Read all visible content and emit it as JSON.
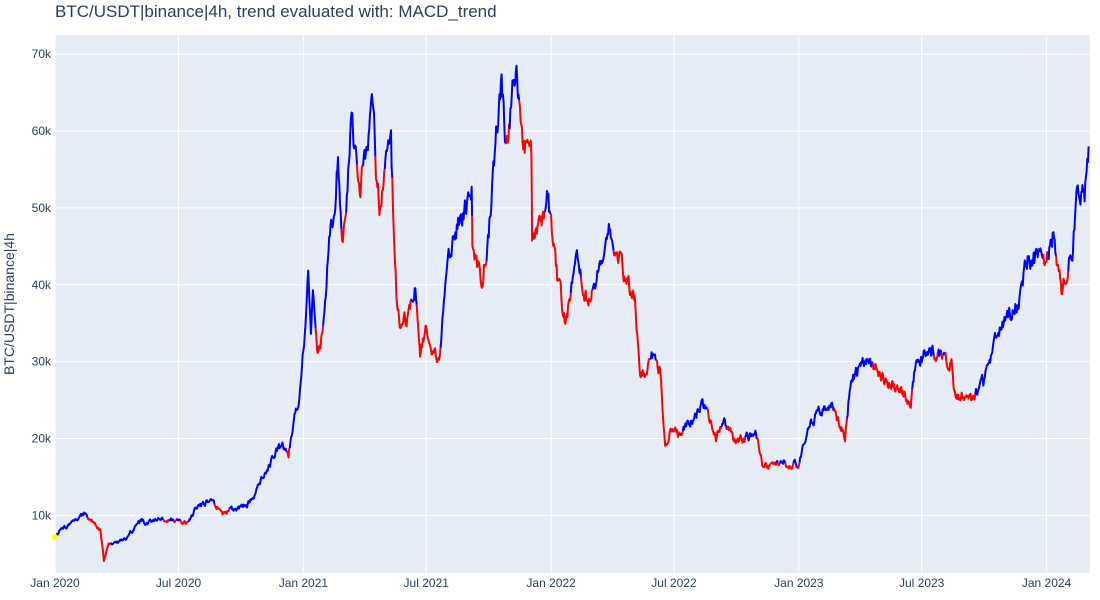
{
  "chart_data": {
    "type": "line",
    "title": "BTC/USDT|binance|4h, trend evaluated with: MACD_trend",
    "xlabel": "",
    "ylabel": "BTC/USDT|binance|4h",
    "xlim": [
      "2020-01-01",
      "2024-03-05"
    ],
    "ylim": [
      2500,
      72500
    ],
    "grid": true,
    "y_ticks": [
      10000,
      20000,
      30000,
      40000,
      50000,
      60000,
      70000
    ],
    "y_tick_labels": [
      "10k",
      "20k",
      "30k",
      "40k",
      "50k",
      "60k",
      "70k"
    ],
    "x_ticks": [
      "2020-01-01",
      "2020-07-01",
      "2021-01-01",
      "2021-07-01",
      "2022-01-01",
      "2022-07-01",
      "2023-01-01",
      "2023-07-01",
      "2024-01-01"
    ],
    "x_tick_labels": [
      "Jan 2020",
      "Jul 2020",
      "Jan 2021",
      "Jul 2021",
      "Jan 2022",
      "Jul 2022",
      "Jan 2023",
      "Jul 2023",
      "Jan 2024"
    ],
    "colors": {
      "uptrend": "#0000ff",
      "downtrend": "#ff0000",
      "start": "#ffff00",
      "plot_bg": "#e5ecf6",
      "grid": "#ffffff",
      "text": "#2a3f5f"
    },
    "series": [
      {
        "values": [
          [
            "2020-01-01",
            7200
          ],
          [
            "2020-01-10",
            8000
          ],
          [
            "2020-01-20",
            8600
          ],
          [
            "2020-02-01",
            9300
          ],
          [
            "2020-02-13",
            10300
          ],
          [
            "2020-02-20",
            9700
          ],
          [
            "2020-03-01",
            8600
          ],
          [
            "2020-03-08",
            8000
          ],
          [
            "2020-03-12",
            5000
          ],
          [
            "2020-03-13",
            4100
          ],
          [
            "2020-03-20",
            6200
          ],
          [
            "2020-04-01",
            6500
          ],
          [
            "2020-04-15",
            7000
          ],
          [
            "2020-04-30",
            8700
          ],
          [
            "2020-05-10",
            9400
          ],
          [
            "2020-05-12",
            8700
          ],
          [
            "2020-06-01",
            9700
          ],
          [
            "2020-06-15",
            9400
          ],
          [
            "2020-07-01",
            9200
          ],
          [
            "2020-07-15",
            9200
          ],
          [
            "2020-07-27",
            11000
          ],
          [
            "2020-08-17",
            12000
          ],
          [
            "2020-09-05",
            10300
          ],
          [
            "2020-09-20",
            10800
          ],
          [
            "2020-10-10",
            11200
          ],
          [
            "2020-10-21",
            12800
          ],
          [
            "2020-11-05",
            15500
          ],
          [
            "2020-11-25",
            18800
          ],
          [
            "2020-12-01",
            19300
          ],
          [
            "2020-12-10",
            18100
          ],
          [
            "2020-12-17",
            22000
          ],
          [
            "2020-12-25",
            24500
          ],
          [
            "2021-01-03",
            33000
          ],
          [
            "2021-01-08",
            41000
          ],
          [
            "2021-01-12",
            33000
          ],
          [
            "2021-01-15",
            38000
          ],
          [
            "2021-01-22",
            31000
          ],
          [
            "2021-01-30",
            34000
          ],
          [
            "2021-02-08",
            46000
          ],
          [
            "2021-02-14",
            48000
          ],
          [
            "2021-02-21",
            57000
          ],
          [
            "2021-02-28",
            45000
          ],
          [
            "2021-03-13",
            61000
          ],
          [
            "2021-03-25",
            52000
          ],
          [
            "2021-04-05",
            59000
          ],
          [
            "2021-04-14",
            64000
          ],
          [
            "2021-04-18",
            55000
          ],
          [
            "2021-04-25",
            49000
          ],
          [
            "2021-05-03",
            57000
          ],
          [
            "2021-05-10",
            58000
          ],
          [
            "2021-05-13",
            50000
          ],
          [
            "2021-05-19",
            37000
          ],
          [
            "2021-05-24",
            34000
          ],
          [
            "2021-06-05",
            36000
          ],
          [
            "2021-06-15",
            40000
          ],
          [
            "2021-06-22",
            31000
          ],
          [
            "2021-07-01",
            34000
          ],
          [
            "2021-07-20",
            29800
          ],
          [
            "2021-07-30",
            41000
          ],
          [
            "2021-08-14",
            47000
          ],
          [
            "2021-08-22",
            49500
          ],
          [
            "2021-09-06",
            52000
          ],
          [
            "2021-09-07",
            46000
          ],
          [
            "2021-09-21",
            40000
          ],
          [
            "2021-10-01",
            47000
          ],
          [
            "2021-10-10",
            57000
          ],
          [
            "2021-10-20",
            66000
          ],
          [
            "2021-10-27",
            58000
          ],
          [
            "2021-11-10",
            68500
          ],
          [
            "2021-11-20",
            58000
          ],
          [
            "2021-12-03",
            57000
          ],
          [
            "2021-12-04",
            47000
          ],
          [
            "2021-12-15",
            48000
          ],
          [
            "2021-12-27",
            51000
          ],
          [
            "2022-01-10",
            41000
          ],
          [
            "2022-01-22",
            35000
          ],
          [
            "2022-02-10",
            44000
          ],
          [
            "2022-02-24",
            37000
          ],
          [
            "2022-03-05",
            39000
          ],
          [
            "2022-03-28",
            47500
          ],
          [
            "2022-04-20",
            41000
          ],
          [
            "2022-05-05",
            38000
          ],
          [
            "2022-05-10",
            30000
          ],
          [
            "2022-05-12",
            27500
          ],
          [
            "2022-06-01",
            31000
          ],
          [
            "2022-06-10",
            29000
          ],
          [
            "2022-06-18",
            18500
          ],
          [
            "2022-06-25",
            21000
          ],
          [
            "2022-07-10",
            20500
          ],
          [
            "2022-08-14",
            24500
          ],
          [
            "2022-09-01",
            20000
          ],
          [
            "2022-09-12",
            22500
          ],
          [
            "2022-10-01",
            19500
          ],
          [
            "2022-10-30",
            20800
          ],
          [
            "2022-11-09",
            16000
          ],
          [
            "2022-12-01",
            17000
          ],
          [
            "2022-12-31",
            16500
          ],
          [
            "2023-01-14",
            20800
          ],
          [
            "2023-01-25",
            23000
          ],
          [
            "2023-02-16",
            24800
          ],
          [
            "2023-03-10",
            20000
          ],
          [
            "2023-03-18",
            27500
          ],
          [
            "2023-04-14",
            30500
          ],
          [
            "2023-05-10",
            27500
          ],
          [
            "2023-06-15",
            25000
          ],
          [
            "2023-06-22",
            30000
          ],
          [
            "2023-07-13",
            31500
          ],
          [
            "2023-08-14",
            29400
          ],
          [
            "2023-08-17",
            26000
          ],
          [
            "2023-09-11",
            25000
          ],
          [
            "2023-10-01",
            27500
          ],
          [
            "2023-10-23",
            34000
          ],
          [
            "2023-11-20",
            37500
          ],
          [
            "2023-12-05",
            44000
          ],
          [
            "2024-01-01",
            42500
          ],
          [
            "2024-01-11",
            47000
          ],
          [
            "2024-01-23",
            39000
          ],
          [
            "2024-02-08",
            45000
          ],
          [
            "2024-02-15",
            52000
          ],
          [
            "2024-02-26",
            51500
          ],
          [
            "2024-03-03",
            58000
          ]
        ]
      }
    ]
  }
}
